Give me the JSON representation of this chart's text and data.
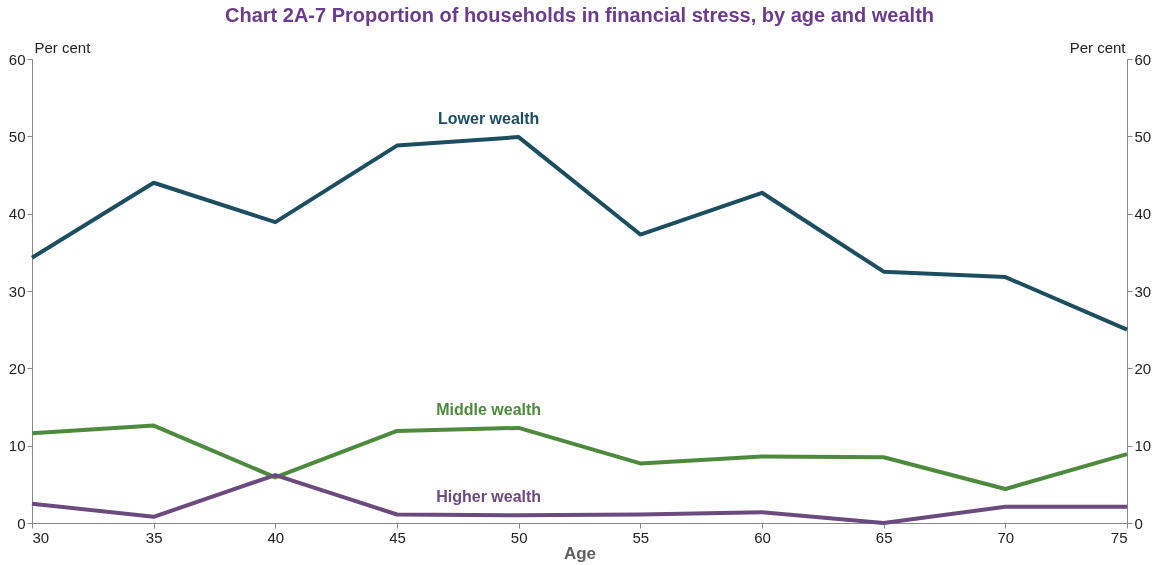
{
  "chart_data": {
    "type": "line",
    "title": "Chart 2A-7        Proportion of households in financial stress, by age and wealth",
    "xlabel": "Age",
    "ylabel": "Per cent",
    "y2label": "Per cent",
    "x": [
      30,
      35,
      40,
      45,
      50,
      55,
      60,
      65,
      70,
      75
    ],
    "series": [
      {
        "name": "Lower wealth",
        "color": "#1d4e5f",
        "values": [
          34.3,
          44.0,
          38.9,
          48.8,
          49.9,
          37.3,
          42.7,
          32.5,
          31.8,
          25.0
        ]
      },
      {
        "name": "Middle wealth",
        "color": "#4e8a3e",
        "values": [
          11.6,
          12.6,
          5.9,
          11.9,
          12.3,
          7.7,
          8.6,
          8.5,
          4.4,
          8.9
        ]
      },
      {
        "name": "Higher wealth",
        "color": "#6b4a7d",
        "values": [
          2.5,
          0.8,
          6.2,
          1.1,
          1.0,
          1.1,
          1.4,
          0.0,
          2.1,
          2.1
        ]
      }
    ],
    "xlim": [
      30,
      75
    ],
    "xticks": [
      30,
      35,
      40,
      45,
      50,
      55,
      60,
      65,
      70,
      75
    ],
    "ylim": [
      0,
      60
    ],
    "yticks": [
      0,
      10,
      20,
      30,
      40,
      50,
      60
    ],
    "y2lim": [
      0,
      60
    ],
    "y2ticks": [
      0,
      10,
      20,
      30,
      40,
      50,
      60
    ],
    "grid": false,
    "legend": false,
    "marker": "none",
    "line_style": "solid"
  }
}
